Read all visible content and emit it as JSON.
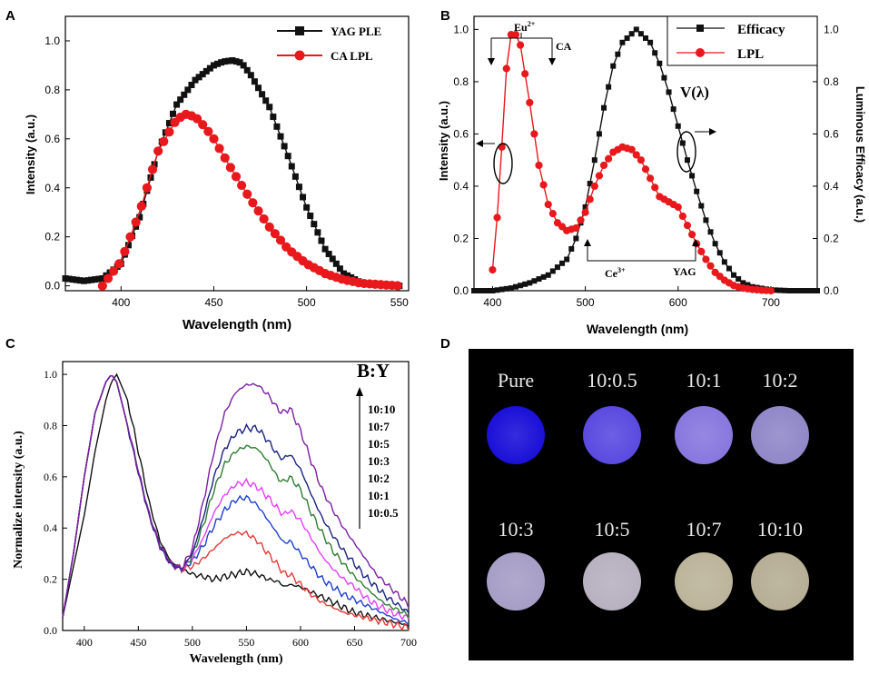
{
  "chart_data": [
    {
      "panel": "A",
      "type": "line",
      "xlabel": "Wavelength (nm)",
      "ylabel": "Intensity (a.u.)",
      "xlim": [
        370,
        555
      ],
      "ylim": [
        -0.02,
        1.1
      ],
      "xticks": [
        400,
        450,
        500,
        550
      ],
      "yticks": [
        0.0,
        0.2,
        0.4,
        0.6,
        0.8,
        1.0
      ],
      "legend_position": "top-right",
      "series": [
        {
          "name": "YAG PLE",
          "color": "#111111",
          "marker": "square",
          "x": [
            370,
            380,
            390,
            400,
            410,
            420,
            430,
            440,
            450,
            455,
            460,
            465,
            470,
            480,
            490,
            500,
            510,
            520,
            530,
            540,
            550
          ],
          "y": [
            0.03,
            0.02,
            0.03,
            0.09,
            0.28,
            0.55,
            0.74,
            0.84,
            0.9,
            0.915,
            0.92,
            0.91,
            0.86,
            0.73,
            0.53,
            0.32,
            0.15,
            0.05,
            0.01,
            0.005,
            0.0
          ]
        },
        {
          "name": "CA LPL",
          "color": "#e8181c",
          "marker": "circle",
          "x": [
            390,
            400,
            410,
            420,
            430,
            435,
            440,
            445,
            450,
            460,
            470,
            480,
            490,
            500,
            510,
            520,
            530,
            540,
            550
          ],
          "y": [
            0.0,
            0.1,
            0.3,
            0.55,
            0.68,
            0.7,
            0.69,
            0.65,
            0.6,
            0.47,
            0.35,
            0.24,
            0.15,
            0.09,
            0.05,
            0.025,
            0.01,
            0.005,
            0.0
          ]
        }
      ]
    },
    {
      "panel": "B",
      "type": "line",
      "xlabel": "Wavelength (nm)",
      "ylabel": "Intensity (a.u.)",
      "y2label": "Luminous Efficacy (a.u.)",
      "xlim": [
        380,
        750
      ],
      "ylim": [
        0.0,
        1.05
      ],
      "xticks": [
        400,
        500,
        600,
        700
      ],
      "yticks": [
        0.0,
        0.2,
        0.4,
        0.6,
        0.8,
        1.0
      ],
      "legend_position": "top-right",
      "series": [
        {
          "name": "Efficacy",
          "color": "#111111",
          "marker": "square",
          "x": [
            380,
            400,
            420,
            440,
            460,
            480,
            490,
            500,
            510,
            520,
            530,
            540,
            555,
            570,
            580,
            590,
            600,
            610,
            620,
            630,
            640,
            650,
            660,
            670,
            680,
            700,
            720,
            750
          ],
          "y": [
            0.0,
            0.0,
            0.01,
            0.03,
            0.06,
            0.12,
            0.2,
            0.32,
            0.5,
            0.7,
            0.86,
            0.95,
            1.0,
            0.95,
            0.87,
            0.76,
            0.63,
            0.5,
            0.38,
            0.27,
            0.18,
            0.11,
            0.06,
            0.03,
            0.015,
            0.003,
            0.0,
            0.0
          ]
        },
        {
          "name": "LPL",
          "color": "#e8181c",
          "marker": "circle",
          "x": [
            400,
            405,
            410,
            415,
            420,
            425,
            430,
            440,
            450,
            460,
            470,
            480,
            490,
            500,
            510,
            520,
            530,
            540,
            550,
            560,
            570,
            580,
            590,
            600,
            610,
            620,
            630,
            640,
            650,
            660,
            670,
            680,
            690,
            700
          ],
          "y": [
            0.08,
            0.28,
            0.55,
            0.85,
            0.98,
            0.98,
            0.94,
            0.72,
            0.48,
            0.33,
            0.26,
            0.23,
            0.24,
            0.3,
            0.4,
            0.48,
            0.53,
            0.55,
            0.54,
            0.5,
            0.43,
            0.36,
            0.34,
            0.32,
            0.25,
            0.18,
            0.12,
            0.07,
            0.04,
            0.02,
            0.01,
            0.005,
            0.002,
            0.0
          ]
        }
      ],
      "annotations": [
        "Eu2+",
        "CA",
        "Ce3+",
        "YAG",
        "V(λ)"
      ]
    },
    {
      "panel": "C",
      "type": "line",
      "xlabel": "Wavelength (nm)",
      "ylabel": "Normalize intensity (a.u.)",
      "xlim": [
        380,
        700
      ],
      "ylim": [
        0.0,
        1.05
      ],
      "xticks": [
        400,
        450,
        500,
        550,
        600,
        650,
        700
      ],
      "yticks": [
        0.0,
        0.2,
        0.4,
        0.6,
        0.8,
        1.0
      ],
      "legend_title": "B:Y",
      "x": [
        380,
        390,
        400,
        410,
        420,
        425,
        430,
        440,
        450,
        460,
        470,
        480,
        490,
        500,
        510,
        520,
        530,
        540,
        550,
        560,
        570,
        580,
        585,
        590,
        600,
        610,
        620,
        630,
        640,
        650,
        660,
        670,
        680,
        690,
        700
      ],
      "series": [
        {
          "name": "10:10",
          "color": "#7b1fa2",
          "values": [
            0.05,
            0.3,
            0.6,
            0.85,
            0.97,
            1.0,
            0.97,
            0.8,
            0.62,
            0.45,
            0.33,
            0.26,
            0.24,
            0.32,
            0.5,
            0.7,
            0.85,
            0.93,
            0.96,
            0.96,
            0.92,
            0.86,
            0.85,
            0.87,
            0.78,
            0.66,
            0.55,
            0.47,
            0.4,
            0.34,
            0.28,
            0.22,
            0.18,
            0.14,
            0.1
          ]
        },
        {
          "name": "10:7",
          "color": "#1a237e",
          "values": [
            0.05,
            0.3,
            0.6,
            0.85,
            0.97,
            1.0,
            0.97,
            0.8,
            0.62,
            0.45,
            0.33,
            0.26,
            0.24,
            0.3,
            0.44,
            0.6,
            0.71,
            0.77,
            0.79,
            0.79,
            0.74,
            0.68,
            0.67,
            0.69,
            0.63,
            0.53,
            0.44,
            0.37,
            0.31,
            0.26,
            0.21,
            0.17,
            0.13,
            0.1,
            0.07
          ]
        },
        {
          "name": "10:5",
          "color": "#2e7d32",
          "values": [
            0.05,
            0.3,
            0.6,
            0.85,
            0.97,
            1.0,
            0.97,
            0.8,
            0.62,
            0.45,
            0.33,
            0.26,
            0.24,
            0.29,
            0.41,
            0.55,
            0.65,
            0.7,
            0.72,
            0.71,
            0.66,
            0.59,
            0.58,
            0.6,
            0.55,
            0.46,
            0.38,
            0.31,
            0.26,
            0.21,
            0.17,
            0.13,
            0.1,
            0.08,
            0.06
          ]
        },
        {
          "name": "10:3",
          "color": "#e040fb",
          "values": [
            0.05,
            0.3,
            0.6,
            0.85,
            0.97,
            1.0,
            0.97,
            0.8,
            0.62,
            0.45,
            0.33,
            0.26,
            0.24,
            0.28,
            0.36,
            0.46,
            0.53,
            0.57,
            0.58,
            0.56,
            0.52,
            0.47,
            0.45,
            0.47,
            0.43,
            0.36,
            0.29,
            0.24,
            0.2,
            0.17,
            0.13,
            0.1,
            0.08,
            0.06,
            0.05
          ]
        },
        {
          "name": "10:2",
          "color": "#1e40cc",
          "values": [
            0.05,
            0.3,
            0.6,
            0.85,
            0.97,
            1.0,
            0.97,
            0.8,
            0.62,
            0.45,
            0.33,
            0.26,
            0.24,
            0.27,
            0.33,
            0.41,
            0.47,
            0.51,
            0.52,
            0.49,
            0.43,
            0.37,
            0.34,
            0.35,
            0.3,
            0.25,
            0.2,
            0.17,
            0.14,
            0.12,
            0.1,
            0.08,
            0.06,
            0.04,
            0.03
          ]
        },
        {
          "name": "10:1",
          "color": "#e53935",
          "values": [
            0.05,
            0.3,
            0.6,
            0.85,
            0.97,
            1.0,
            0.97,
            0.8,
            0.62,
            0.45,
            0.33,
            0.26,
            0.24,
            0.25,
            0.28,
            0.32,
            0.36,
            0.38,
            0.38,
            0.35,
            0.3,
            0.25,
            0.22,
            0.22,
            0.18,
            0.14,
            0.11,
            0.09,
            0.07,
            0.06,
            0.05,
            0.04,
            0.03,
            0.02,
            0.01
          ]
        },
        {
          "name": "10:0.5",
          "color": "#111111",
          "values": [
            0.05,
            0.25,
            0.45,
            0.7,
            0.9,
            0.97,
            1.0,
            0.9,
            0.7,
            0.5,
            0.35,
            0.27,
            0.24,
            0.22,
            0.21,
            0.2,
            0.21,
            0.22,
            0.23,
            0.22,
            0.2,
            0.19,
            0.17,
            0.18,
            0.17,
            0.15,
            0.13,
            0.11,
            0.09,
            0.07,
            0.06,
            0.05,
            0.04,
            0.03,
            0.02
          ]
        }
      ]
    }
  ],
  "panel_labels": [
    "A",
    "B",
    "C",
    "D"
  ],
  "legend_A": {
    "items": [
      "YAG PLE",
      "CA LPL"
    ]
  },
  "legend_B": {
    "items": [
      "Efficacy",
      "LPL"
    ]
  },
  "panel_d": {
    "samples": [
      {
        "label": "Pure",
        "color": "#1a10d8"
      },
      {
        "label": "10:0.5",
        "color": "#5a4ae0"
      },
      {
        "label": "10:1",
        "color": "#8877de"
      },
      {
        "label": "10:2",
        "color": "#9088c8"
      },
      {
        "label": "10:3",
        "color": "#a69ec6"
      },
      {
        "label": "10:5",
        "color": "#b7b1c0"
      },
      {
        "label": "10:7",
        "color": "#bcb49a"
      },
      {
        "label": "10:10",
        "color": "#b6ae95"
      }
    ]
  }
}
